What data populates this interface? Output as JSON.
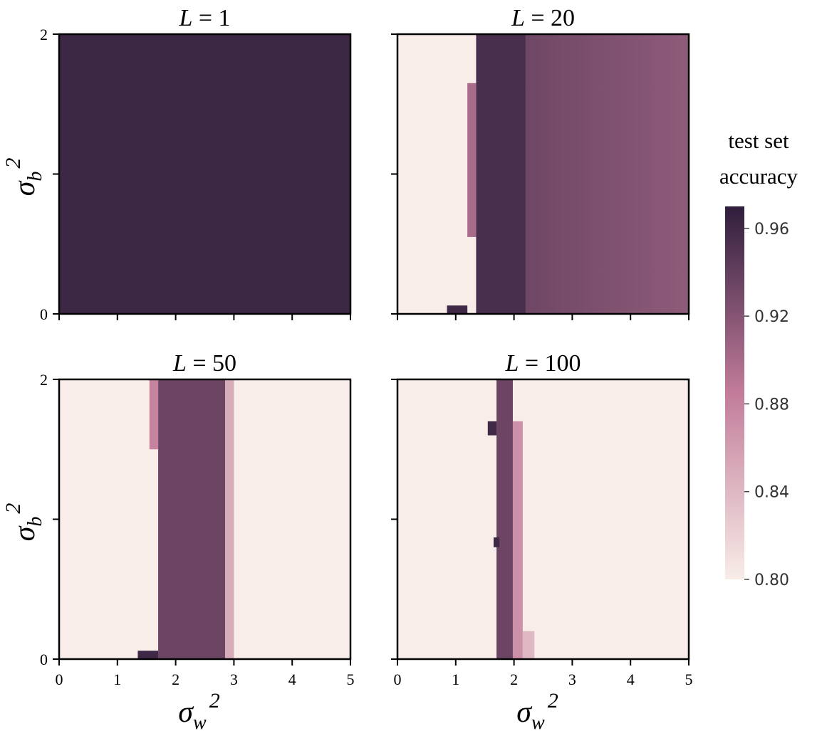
{
  "chart_data": {
    "type": "heatmap",
    "xlabel_base": "σ",
    "xlabel_sub": "w",
    "xlabel_sup": "2",
    "ylabel_base": "σ",
    "ylabel_sub": "b",
    "ylabel_sup": "2",
    "xlim": [
      0,
      5
    ],
    "ylim": [
      0,
      2
    ],
    "x_ticks": [
      0,
      1,
      2,
      3,
      4,
      5
    ],
    "y_ticks": [
      0,
      1,
      2
    ],
    "x_tick_labels": [
      "0",
      "1",
      "2",
      "3",
      "4",
      "5"
    ],
    "y_tick_labels": [
      "0",
      "",
      "2"
    ],
    "colorbar": {
      "title_line1": "test set",
      "title_line2": "accuracy",
      "min": 0.8,
      "max": 0.97,
      "ticks": [
        0.8,
        0.84,
        0.88,
        0.92,
        0.96
      ],
      "tick_labels": [
        "0.80",
        "0.84",
        "0.88",
        "0.92",
        "0.96"
      ],
      "color_low": "#f8ede8",
      "color_mid": "#c27c9a",
      "color_high": "#2e1e3c"
    },
    "panels": [
      {
        "title_var": "L",
        "title_eq": " = 1",
        "description": "uniform high accuracy across the whole grid",
        "base_accuracy": 0.962,
        "regions": []
      },
      {
        "title_var": "L",
        "title_eq": " = 20",
        "base_accuracy": 0.8,
        "regions": [
          {
            "x0": 1.35,
            "x1": 2.2,
            "y0": 0.0,
            "y1": 2.0,
            "acc": 0.955
          },
          {
            "x0": 2.2,
            "x1": 5.0,
            "y0": 0.0,
            "y1": 2.0,
            "acc_left": 0.933,
            "acc_right": 0.915
          },
          {
            "x0": 1.2,
            "x1": 1.35,
            "y0": 0.55,
            "y1": 1.65,
            "acc": 0.9
          },
          {
            "x0": 0.85,
            "x1": 1.2,
            "y0": 0.0,
            "y1": 0.06,
            "acc": 0.96
          }
        ]
      },
      {
        "title_var": "L",
        "title_eq": " = 50",
        "base_accuracy": 0.8,
        "regions": [
          {
            "x0": 1.7,
            "x1": 2.85,
            "y0": 0.0,
            "y1": 2.0,
            "acc": 0.935
          },
          {
            "x0": 1.55,
            "x1": 1.7,
            "y0": 1.5,
            "y1": 2.0,
            "acc": 0.88
          },
          {
            "x0": 2.85,
            "x1": 3.0,
            "y0": 0.0,
            "y1": 2.0,
            "acc": 0.85
          },
          {
            "x0": 1.35,
            "x1": 1.7,
            "y0": 0.0,
            "y1": 0.06,
            "acc": 0.96
          }
        ]
      },
      {
        "title_var": "L",
        "title_eq": " = 100",
        "base_accuracy": 0.8,
        "regions": [
          {
            "x0": 1.7,
            "x1": 1.98,
            "y0": 0.0,
            "y1": 2.0,
            "acc": 0.935
          },
          {
            "x0": 1.98,
            "x1": 2.15,
            "y0": 0.0,
            "y1": 1.7,
            "acc": 0.87
          },
          {
            "x0": 1.55,
            "x1": 1.7,
            "y0": 1.6,
            "y1": 1.7,
            "acc": 0.96
          },
          {
            "x0": 1.65,
            "x1": 1.75,
            "y0": 0.8,
            "y1": 0.87,
            "acc": 0.96
          },
          {
            "x0": 2.15,
            "x1": 2.35,
            "y0": 0.0,
            "y1": 0.2,
            "acc": 0.84
          }
        ]
      }
    ]
  }
}
